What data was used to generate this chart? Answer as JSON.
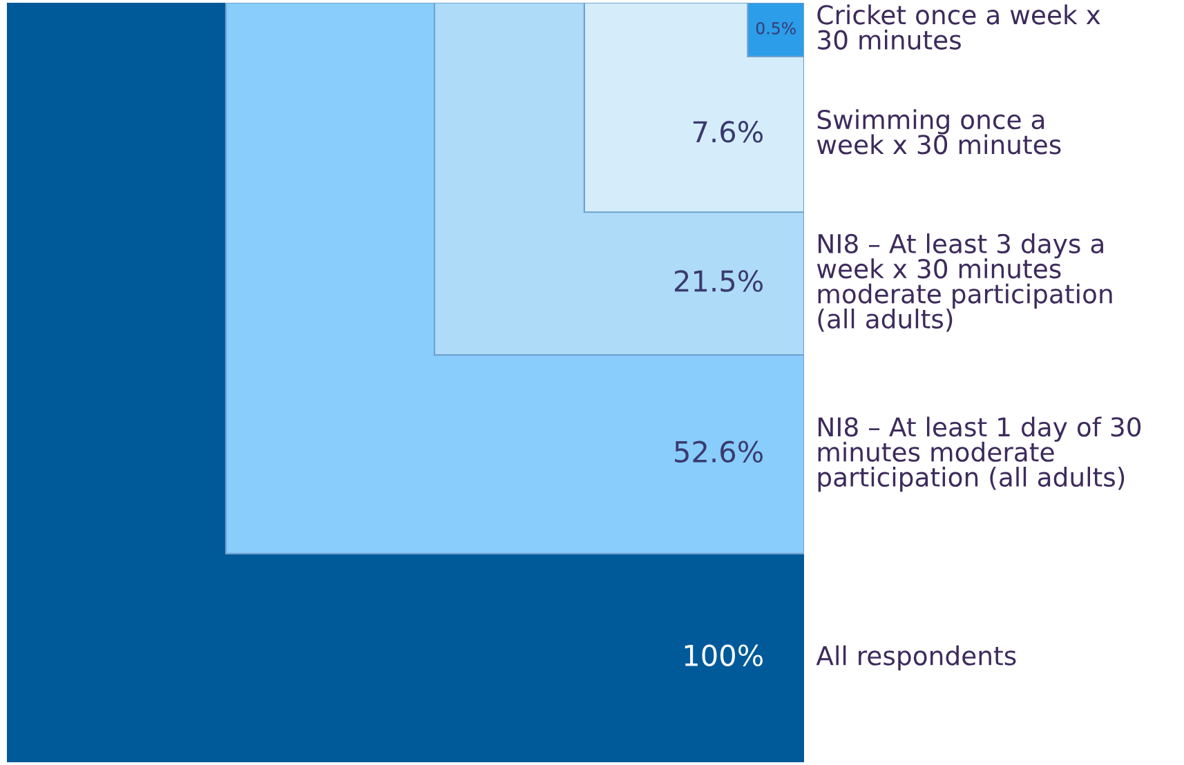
{
  "chart_data": {
    "type": "other",
    "categories": [
      "All respondents",
      "NI8 – At least 1 day of 30\nminutes moderate\nparticipation (all adults)",
      "NI8 – At least 3 days a\nweek x 30 minutes\nmoderate participation\n(all adults)",
      "Swimming once a\nweek x 30 minutes",
      "Cricket once a week x\n30 minutes"
    ],
    "values": [
      100,
      52.6,
      21.5,
      7.6,
      0.5
    ],
    "value_labels": [
      "100%",
      "52.6%",
      "21.5%",
      "7.6%",
      "0.5%"
    ],
    "colors": [
      "#005a9a",
      "#88cdfb",
      "#aedbf8",
      "#d5edfb",
      "#2b9de9"
    ]
  }
}
